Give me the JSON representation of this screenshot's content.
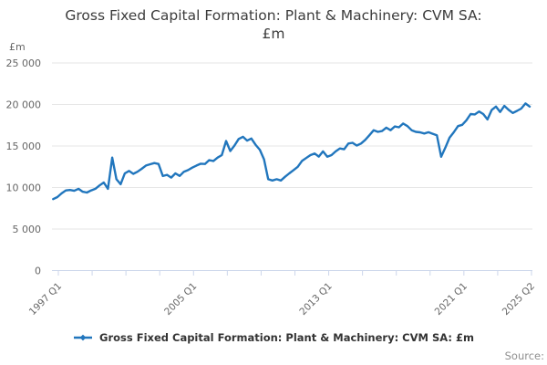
{
  "title": {
    "line1": "Gross Fixed Capital Formation: Plant & Machinery: CVM SA:",
    "line2": "£m"
  },
  "y_axis": {
    "unit_label": "£m",
    "tick_labels": [
      "25 000",
      "20 000",
      "15 000",
      "10 000",
      "5 000",
      "0"
    ],
    "tick_values": [
      25000,
      20000,
      15000,
      10000,
      5000,
      0
    ]
  },
  "x_axis": {
    "tick_count": 15,
    "labels": [
      {
        "tick_index": 0,
        "text": "1997 Q1"
      },
      {
        "tick_index": 4,
        "text": "2005 Q1"
      },
      {
        "tick_index": 8,
        "text": "2013 Q1"
      },
      {
        "tick_index": 12,
        "text": "2021 Q1"
      },
      {
        "tick_index": 14,
        "text": "2025 Q2"
      }
    ]
  },
  "legend": {
    "label": "Gross Fixed Capital Formation: Plant & Machinery: CVM SA: £m",
    "marker_icon": "line-series-marker"
  },
  "source": {
    "text": "Source:"
  },
  "colors": {
    "line": "#2176bd",
    "grid": "#e6e6e6",
    "axis": "#ccd6eb",
    "label_gray": "#666666",
    "title_dark": "#3c3c3c"
  },
  "chart_data": {
    "type": "line",
    "title": "Gross Fixed Capital Formation: Plant & Machinery: CVM SA: £m",
    "ylabel": "£m",
    "ylim": [
      0,
      25000
    ],
    "grid": "horizontal",
    "legend_position": "bottom",
    "frequency": "quarterly",
    "x_start": "1997 Q1",
    "x_end": "2025 Q2",
    "x_tick_labels": [
      "1997 Q1",
      "2005 Q1",
      "2013 Q1",
      "2021 Q1",
      "2025 Q2"
    ],
    "series": [
      {
        "name": "Gross Fixed Capital Formation: Plant & Machinery: CVM SA: £m",
        "values": [
          8600,
          8850,
          9300,
          9650,
          9700,
          9600,
          9850,
          9500,
          9400,
          9650,
          9850,
          10250,
          10600,
          9850,
          13600,
          11000,
          10400,
          11700,
          12000,
          11650,
          11900,
          12250,
          12650,
          12800,
          12950,
          12830,
          11380,
          11530,
          11200,
          11700,
          11400,
          11900,
          12100,
          12400,
          12650,
          12870,
          12830,
          13300,
          13200,
          13600,
          13900,
          15600,
          14400,
          15050,
          15850,
          16110,
          15650,
          15900,
          15150,
          14550,
          13400,
          11000,
          10850,
          11000,
          10850,
          11300,
          11700,
          12100,
          12500,
          13200,
          13550,
          13900,
          14100,
          13730,
          14350,
          13700,
          13900,
          14350,
          14700,
          14600,
          15300,
          15380,
          15050,
          15300,
          15740,
          16300,
          16900,
          16700,
          16800,
          17210,
          16900,
          17350,
          17250,
          17700,
          17400,
          16900,
          16700,
          16650,
          16500,
          16660,
          16470,
          16300,
          13700,
          14800,
          16000,
          16650,
          17400,
          17550,
          18100,
          18850,
          18800,
          19150,
          18850,
          18200,
          19350,
          19750,
          19100,
          19840,
          19350,
          18980,
          19230,
          19500,
          20120,
          19750
        ]
      }
    ]
  }
}
